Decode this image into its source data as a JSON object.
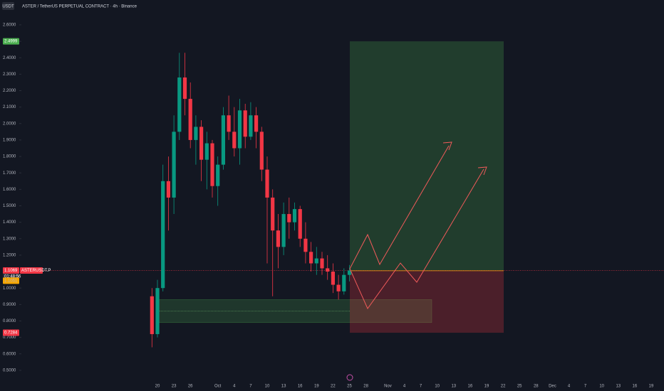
{
  "chart_data": {
    "type": "candlestick",
    "header": {
      "currency": "USDT",
      "title": "ASTER / TetherUS PERPETUAL CONTRACT · 4h · Binance"
    },
    "symbol": "ASTERUSDT.P",
    "countdown": "01:48:56",
    "last_price": 1.1069,
    "entry_price": 1.1051,
    "target_price": 2.4999,
    "stop_price": 0.7284,
    "support_zone": [
      0.79,
      0.93
    ],
    "up_color": "#089981",
    "down_color": "#f23645",
    "ylim": [
      0.452,
      2.751
    ],
    "yticks": [
      {
        "value": 2.6,
        "label": "2.6000"
      },
      {
        "value": 2.5,
        "label": "2.5000"
      },
      {
        "value": 2.4,
        "label": "2.4000"
      },
      {
        "value": 2.3,
        "label": "2.3000"
      },
      {
        "value": 2.2,
        "label": "2.2000"
      },
      {
        "value": 2.1,
        "label": "2.1000"
      },
      {
        "value": 2.0,
        "label": "2.0000"
      },
      {
        "value": 1.9,
        "label": "1.9000"
      },
      {
        "value": 1.8,
        "label": "1.8000"
      },
      {
        "value": 1.7,
        "label": "1.7000"
      },
      {
        "value": 1.6,
        "label": "1.6000"
      },
      {
        "value": 1.5,
        "label": "1.5000"
      },
      {
        "value": 1.4,
        "label": "1.4000"
      },
      {
        "value": 1.3,
        "label": "1.3000"
      },
      {
        "value": 1.2,
        "label": "1.2000"
      },
      {
        "value": 1.1,
        "label": "1.1000"
      },
      {
        "value": 1.0,
        "label": "1.0000"
      },
      {
        "value": 0.9,
        "label": "0.9000"
      },
      {
        "value": 0.8,
        "label": "0.8000"
      },
      {
        "value": 0.7,
        "label": "0.7000"
      },
      {
        "value": 0.6,
        "label": "0.6000"
      },
      {
        "value": 0.5,
        "label": "0.5000"
      }
    ],
    "categories": [
      null,
      null,
      "20",
      null,
      null,
      "23",
      null,
      null,
      "26",
      null,
      null,
      null,
      null,
      "Oct",
      null,
      null,
      "4",
      null,
      null,
      "7",
      null,
      null,
      "10",
      null,
      null,
      "13",
      null,
      null,
      "16",
      null,
      null,
      "19",
      null,
      null,
      "22",
      null,
      null,
      "25",
      null,
      null,
      "28",
      null,
      null,
      null,
      "Nov",
      null,
      null,
      "4",
      null,
      null,
      "7",
      null,
      null,
      "10",
      null,
      null,
      "13",
      null,
      null,
      "16",
      null,
      null,
      "19",
      null,
      null,
      "22",
      null,
      null,
      "25",
      null,
      null,
      "28",
      null,
      null,
      "Dec",
      null,
      null,
      "4",
      null,
      null,
      "7",
      null,
      null,
      "10",
      null,
      null,
      "13",
      null,
      null,
      "16",
      null,
      null,
      "19",
      null
    ],
    "open": [
      null,
      0.95,
      0.72,
      1.0,
      1.65,
      1.55,
      1.95,
      2.28,
      2.15,
      1.9,
      1.98,
      1.78,
      1.88,
      1.62,
      1.75,
      2.05,
      1.95,
      1.85,
      2.08,
      1.92,
      2.05,
      1.95,
      1.72,
      1.55,
      1.35,
      1.25,
      1.45,
      1.4,
      1.48,
      1.3,
      1.22,
      1.15,
      1.18,
      1.12,
      1.1,
      1.02,
      0.98,
      1.08,
      null,
      null,
      null,
      null,
      null,
      null,
      null,
      null,
      null,
      null,
      null,
      null,
      null,
      null,
      null,
      null,
      null,
      null,
      null,
      null,
      null,
      null,
      null,
      null,
      null,
      null,
      null,
      null,
      null,
      null,
      null,
      null,
      null,
      null,
      null,
      null,
      null,
      null,
      null,
      null,
      null,
      null,
      null,
      null,
      null,
      null,
      null,
      null,
      null,
      null,
      null,
      null,
      null,
      null,
      null,
      null
    ],
    "high": [
      null,
      1.0,
      1.05,
      1.75,
      1.8,
      2.05,
      2.43,
      2.43,
      2.25,
      2.05,
      2.02,
      1.95,
      1.9,
      1.8,
      2.1,
      2.17,
      2.1,
      2.15,
      2.12,
      2.13,
      2.1,
      1.98,
      1.8,
      1.6,
      1.45,
      1.52,
      1.55,
      1.52,
      1.5,
      1.4,
      1.28,
      1.25,
      1.22,
      1.2,
      1.15,
      1.08,
      1.12,
      1.14,
      null,
      null,
      null,
      null,
      null,
      null,
      null,
      null,
      null,
      null,
      null,
      null,
      null,
      null,
      null,
      null,
      null,
      null,
      null,
      null,
      null,
      null,
      null,
      null,
      null,
      null,
      null,
      null,
      null,
      null,
      null,
      null,
      null,
      null,
      null,
      null,
      null,
      null,
      null,
      null,
      null,
      null,
      null,
      null,
      null,
      null,
      null,
      null,
      null,
      null,
      null,
      null,
      null,
      null,
      null,
      null
    ],
    "low": [
      null,
      0.64,
      0.7,
      0.98,
      1.35,
      1.45,
      1.9,
      2.05,
      1.85,
      1.75,
      1.65,
      1.6,
      1.55,
      1.5,
      1.72,
      1.9,
      1.8,
      1.75,
      1.85,
      1.9,
      1.85,
      1.65,
      1.15,
      0.95,
      1.12,
      1.2,
      1.3,
      1.35,
      1.25,
      1.15,
      1.1,
      1.08,
      1.08,
      1.05,
      0.97,
      0.93,
      0.96,
      1.04,
      null,
      null,
      null,
      null,
      null,
      null,
      null,
      null,
      null,
      null,
      null,
      null,
      null,
      null,
      null,
      null,
      null,
      null,
      null,
      null,
      null,
      null,
      null,
      null,
      null,
      null,
      null,
      null,
      null,
      null,
      null,
      null,
      null,
      null,
      null,
      null,
      null,
      null,
      null,
      null,
      null,
      null,
      null,
      null,
      null,
      null,
      null,
      null,
      null,
      null,
      null,
      null,
      null,
      null,
      null,
      null
    ],
    "close": [
      null,
      0.72,
      1.0,
      1.65,
      1.55,
      1.95,
      2.28,
      2.15,
      1.9,
      1.98,
      1.78,
      1.88,
      1.62,
      1.75,
      2.05,
      1.95,
      1.85,
      2.08,
      1.92,
      2.05,
      1.95,
      1.72,
      1.55,
      1.35,
      1.25,
      1.45,
      1.4,
      1.48,
      1.3,
      1.22,
      1.15,
      1.18,
      1.12,
      1.1,
      1.02,
      0.98,
      1.08,
      1.1069,
      null,
      null,
      null,
      null,
      null,
      null,
      null,
      null,
      null,
      null,
      null,
      null,
      null,
      null,
      null,
      null,
      null,
      null,
      null,
      null,
      null,
      null,
      null,
      null,
      null,
      null,
      null,
      null,
      null,
      null,
      null,
      null,
      null,
      null,
      null,
      null,
      null,
      null,
      null,
      null,
      null,
      null,
      null,
      null,
      null,
      null,
      null,
      null,
      null,
      null,
      null,
      null,
      null,
      null,
      null,
      null
    ]
  }
}
